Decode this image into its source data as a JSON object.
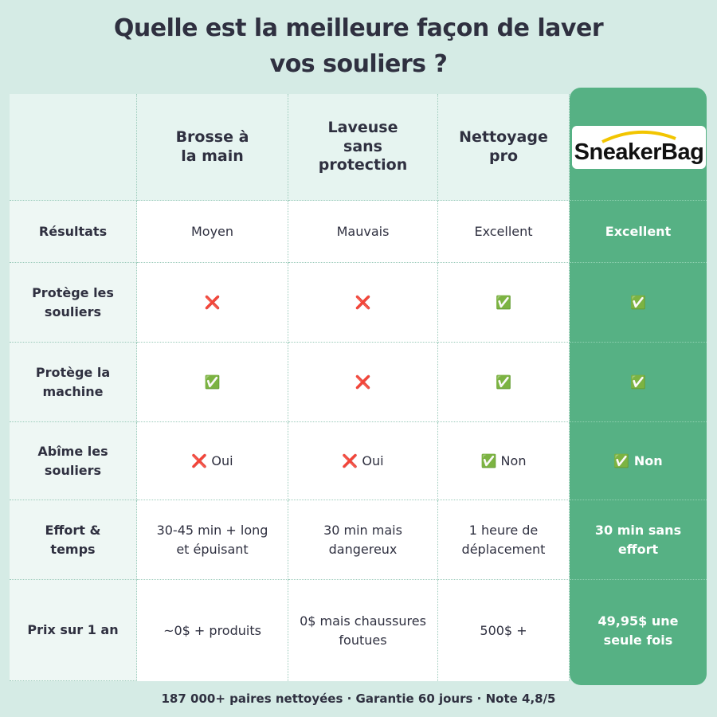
{
  "title": [
    "Quelle est la meilleure façon de laver",
    "vos souliers ?"
  ],
  "table": {
    "columns": [
      "Brosse à la main",
      "Laveuse sans protection",
      "Nettoyage pro",
      "SneakerBag"
    ],
    "rows": [
      {
        "label": "Résultats",
        "cells": [
          "Moyen",
          "Mauvais",
          "Excellent",
          "Excellent"
        ]
      },
      {
        "label": "Protège les souliers",
        "cells": [
          "❌",
          "❌",
          "✅",
          "✅"
        ]
      },
      {
        "label": "Protège la machine",
        "cells": [
          "✅",
          "❌",
          "✅",
          "✅"
        ]
      },
      {
        "label": "Abîme les souliers",
        "cells": [
          "❌ Oui",
          "❌ Oui",
          "✅ Non",
          "✅ Non"
        ]
      },
      {
        "label": "Effort & temps",
        "cells": [
          "30-45 min + long et épuisant",
          "30 min mais dangereux",
          "1 heure de déplacement",
          "30 min sans effort"
        ]
      },
      {
        "label": "Prix sur 1 an",
        "cells": [
          "~0$ + produits",
          "0$ mais chaussures foutues",
          "500$ +",
          "49,95$ une seule fois"
        ]
      }
    ]
  },
  "footer": "187 000+ paires nettoyées · Garantie 60 jours · Note 4,8/5"
}
